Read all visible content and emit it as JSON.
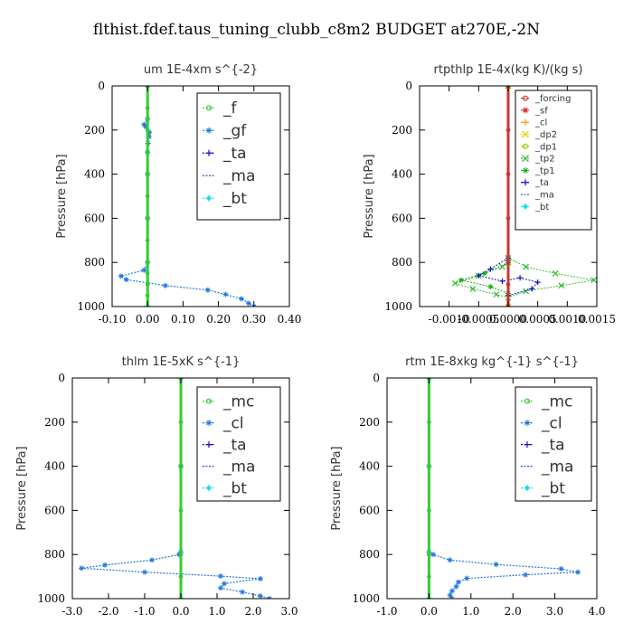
{
  "figure_title": "flthist.fdef.taus_tuning_clubb_c8m2  BUDGET at270E,-2N",
  "chart_data": [
    {
      "type": "line",
      "title": "um   1E-4xm  s^{-2}",
      "ylabel": "Pressure [hPa]",
      "xlim": [
        -0.1,
        0.4
      ],
      "ylim": [
        1000,
        0
      ],
      "xticks": [
        "-0.10",
        "0.00",
        "0.10",
        "0.20",
        "0.30",
        "0.40"
      ],
      "xtick_values": [
        -0.1,
        0.0,
        0.1,
        0.2,
        0.3,
        0.4
      ],
      "yticks": [
        "0",
        "200",
        "400",
        "600",
        "800",
        "1000"
      ],
      "ytick_values": [
        0,
        200,
        400,
        600,
        800,
        1000
      ],
      "legend_placement": "top-right",
      "legend_font": 17,
      "series": [
        {
          "name": "_f",
          "color": "#33cc33",
          "marker": "o",
          "width": 3,
          "points": [
            [
              0.0,
              0
            ],
            [
              0.0,
              100
            ],
            [
              0.0,
              200
            ],
            [
              0.0,
              300
            ],
            [
              0.0,
              400
            ],
            [
              0.0,
              500
            ],
            [
              0.0,
              600
            ],
            [
              0.0,
              700
            ],
            [
              0.0,
              800
            ],
            [
              0.0,
              850
            ],
            [
              0.0,
              900
            ],
            [
              0.0,
              950
            ],
            [
              0.0,
              1000
            ]
          ]
        },
        {
          "name": "_gf",
          "color": "#2277dd",
          "marker": "*",
          "width": 1.2,
          "points": [
            [
              0.0,
              0
            ],
            [
              0.0,
              150
            ],
            [
              -0.01,
              175
            ],
            [
              -0.005,
              185
            ],
            [
              0.005,
              210
            ],
            [
              0.004,
              230
            ],
            [
              0.001,
              260
            ],
            [
              0.0,
              300
            ],
            [
              0.0,
              400
            ],
            [
              0.0,
              600
            ],
            [
              0.0,
              800
            ],
            [
              -0.01,
              835
            ],
            [
              -0.075,
              862
            ],
            [
              -0.06,
              878
            ],
            [
              0.05,
              905
            ],
            [
              0.17,
              925
            ],
            [
              0.22,
              945
            ],
            [
              0.265,
              965
            ],
            [
              0.285,
              985
            ],
            [
              0.3,
              1000
            ]
          ]
        },
        {
          "name": "_ta",
          "color": "#1111cc",
          "marker": "+",
          "width": 1,
          "points": [
            [
              0.0,
              0
            ],
            [
              0.0,
              1000
            ]
          ]
        },
        {
          "name": "_ma",
          "color": "#1155cc",
          "marker": "-",
          "width": 1,
          "points": [
            [
              0.0,
              0
            ],
            [
              0.0,
              1000
            ]
          ]
        },
        {
          "name": "_bt",
          "color": "#11ddee",
          "marker": "d",
          "width": 1,
          "points": [
            [
              0.0,
              0
            ],
            [
              0.0,
              1000
            ]
          ]
        }
      ]
    },
    {
      "type": "line",
      "title": "rtpthlp   1E-4x(kg K)/(kg s)",
      "ylabel": "Pressure [hPa]",
      "xlim": [
        -0.0015,
        0.0015
      ],
      "ylim": [
        1000,
        0
      ],
      "xticks": [
        "-0.0010",
        "-0.0005",
        "0.0000",
        "0.0005",
        "0.0010",
        "0.0015"
      ],
      "xtick_values": [
        -0.001,
        -0.0005,
        0.0,
        0.0005,
        0.001,
        0.0015
      ],
      "yticks": [
        "0",
        "200",
        "400",
        "600",
        "800",
        "1000"
      ],
      "ytick_values": [
        0,
        200,
        400,
        600,
        800,
        1000
      ],
      "legend_placement": "top-right",
      "legend_font": 10,
      "series": [
        {
          "name": "_forcing",
          "color": "#cc3333",
          "marker": "o",
          "width": 3,
          "points": [
            [
              0.0,
              0
            ],
            [
              0.0,
              200
            ],
            [
              0.0,
              400
            ],
            [
              0.0,
              600
            ],
            [
              0.0,
              800
            ],
            [
              0.0,
              900
            ],
            [
              0.0,
              1000
            ]
          ]
        },
        {
          "name": "_sf",
          "color": "#cc2222",
          "marker": "*",
          "width": 1,
          "points": [
            [
              0.0,
              0
            ],
            [
              0.0,
              1000
            ]
          ]
        },
        {
          "name": "_cl",
          "color": "#ff9900",
          "marker": "+",
          "width": 1,
          "points": [
            [
              0.0,
              0
            ],
            [
              0.0,
              1000
            ]
          ]
        },
        {
          "name": "_dp2",
          "color": "#ddcc00",
          "marker": "x",
          "width": 1,
          "points": [
            [
              0.0,
              0
            ],
            [
              0.0,
              1000
            ]
          ]
        },
        {
          "name": "_dp1",
          "color": "#99cc00",
          "marker": "o",
          "width": 1,
          "points": [
            [
              0.0,
              0
            ],
            [
              0.0,
              1000
            ]
          ]
        },
        {
          "name": "_tp2",
          "color": "#33bb33",
          "marker": "x",
          "width": 1,
          "points": [
            [
              0.0,
              0
            ],
            [
              0.0,
              780
            ],
            [
              0.0003,
              820
            ],
            [
              0.0008,
              850
            ],
            [
              0.00145,
              880
            ],
            [
              0.0009,
              905
            ],
            [
              0.0003,
              930
            ],
            [
              0.0,
              960
            ],
            [
              -0.0002,
              945
            ],
            [
              -0.0006,
              920
            ],
            [
              -0.0009,
              895
            ],
            [
              -0.0005,
              860
            ],
            [
              -0.0001,
              820
            ],
            [
              0.0,
              800
            ]
          ]
        },
        {
          "name": "_tp1",
          "color": "#22aa22",
          "marker": "*",
          "width": 1,
          "points": [
            [
              0.0,
              800
            ],
            [
              -0.0004,
              850
            ],
            [
              -0.0008,
              880
            ],
            [
              -0.0003,
              910
            ],
            [
              0.0,
              940
            ]
          ]
        },
        {
          "name": "_ta",
          "color": "#1111cc",
          "marker": "+",
          "width": 1,
          "points": [
            [
              0.0,
              780
            ],
            [
              -0.0003,
              830
            ],
            [
              -0.0005,
              860
            ],
            [
              -0.0001,
              885
            ],
            [
              0.0002,
              870
            ],
            [
              0.0005,
              890
            ],
            [
              0.0004,
              920
            ],
            [
              0.0,
              950
            ]
          ]
        },
        {
          "name": "_ma",
          "color": "#1155cc",
          "marker": "-",
          "width": 1,
          "points": [
            [
              0.0,
              0
            ],
            [
              0.0,
              1000
            ]
          ]
        },
        {
          "name": "_bt",
          "color": "#11ddee",
          "marker": "d",
          "width": 1,
          "points": [
            [
              0.0,
              0
            ],
            [
              0.0,
              1000
            ]
          ]
        }
      ]
    },
    {
      "type": "line",
      "title": "thlm   1E-5xK  s^{-1}",
      "ylabel": "Pressure [hPa]",
      "xlim": [
        -3.0,
        3.0
      ],
      "ylim": [
        1000,
        0
      ],
      "xticks": [
        "-3.0",
        "-2.0",
        "-1.0",
        "0.0",
        "1.0",
        "2.0",
        "3.0"
      ],
      "xtick_values": [
        -3.0,
        -2.0,
        -1.0,
        0.0,
        1.0,
        2.0,
        3.0
      ],
      "yticks": [
        "0",
        "200",
        "400",
        "600",
        "800",
        "1000"
      ],
      "ytick_values": [
        0,
        200,
        400,
        600,
        800,
        1000
      ],
      "legend_placement": "top-right",
      "legend_font": 17,
      "series": [
        {
          "name": "_mc",
          "color": "#33cc33",
          "marker": "o",
          "width": 3,
          "points": [
            [
              0.0,
              0
            ],
            [
              0.0,
              200
            ],
            [
              0.0,
              400
            ],
            [
              0.0,
              600
            ],
            [
              0.0,
              800
            ],
            [
              0.0,
              900
            ],
            [
              0.0,
              1000
            ]
          ]
        },
        {
          "name": "_cl",
          "color": "#2277dd",
          "marker": "*",
          "width": 1.2,
          "points": [
            [
              0.0,
              0
            ],
            [
              0.0,
              400
            ],
            [
              0.0,
              790
            ],
            [
              -0.05,
              800
            ],
            [
              -0.8,
              825
            ],
            [
              -2.1,
              848
            ],
            [
              -2.75,
              862
            ],
            [
              -1.0,
              880
            ],
            [
              1.1,
              898
            ],
            [
              2.2,
              910
            ],
            [
              1.2,
              932
            ],
            [
              1.1,
              952
            ],
            [
              1.7,
              970
            ],
            [
              2.2,
              988
            ],
            [
              2.45,
              1000
            ]
          ]
        },
        {
          "name": "_ta",
          "color": "#1111cc",
          "marker": "+",
          "width": 1,
          "points": [
            [
              0.0,
              0
            ],
            [
              0.0,
              1000
            ]
          ]
        },
        {
          "name": "_ma",
          "color": "#1155cc",
          "marker": "-",
          "width": 1,
          "points": [
            [
              0.0,
              0
            ],
            [
              0.0,
              1000
            ]
          ]
        },
        {
          "name": "_bt",
          "color": "#11ddee",
          "marker": "d",
          "width": 1,
          "points": [
            [
              0.0,
              0
            ],
            [
              0.0,
              1000
            ]
          ]
        }
      ]
    },
    {
      "type": "line",
      "title": "rtm   1E-8xkg  kg^{-1} s^{-1}",
      "ylabel": "Pressure [hPa]",
      "xlim": [
        -1.0,
        4.0
      ],
      "ylim": [
        1000,
        0
      ],
      "xticks": [
        "-1.0",
        "0.0",
        "1.0",
        "2.0",
        "3.0",
        "4.0"
      ],
      "xtick_values": [
        -1.0,
        0.0,
        1.0,
        2.0,
        3.0,
        4.0
      ],
      "yticks": [
        "0",
        "200",
        "400",
        "600",
        "800",
        "1000"
      ],
      "ytick_values": [
        0,
        200,
        400,
        600,
        800,
        1000
      ],
      "legend_placement": "top-right",
      "legend_font": 17,
      "series": [
        {
          "name": "_mc",
          "color": "#33cc33",
          "marker": "o",
          "width": 3,
          "points": [
            [
              0.0,
              0
            ],
            [
              0.0,
              200
            ],
            [
              0.0,
              400
            ],
            [
              0.0,
              600
            ],
            [
              0.0,
              800
            ],
            [
              0.0,
              900
            ],
            [
              0.0,
              1000
            ]
          ]
        },
        {
          "name": "_cl",
          "color": "#2277dd",
          "marker": "*",
          "width": 1.2,
          "points": [
            [
              0.0,
              0
            ],
            [
              0.0,
              400
            ],
            [
              0.0,
              790
            ],
            [
              0.1,
              800
            ],
            [
              0.5,
              825
            ],
            [
              1.6,
              845
            ],
            [
              3.15,
              865
            ],
            [
              3.55,
              880
            ],
            [
              2.3,
              892
            ],
            [
              0.9,
              908
            ],
            [
              0.7,
              925
            ],
            [
              0.65,
              945
            ],
            [
              0.55,
              965
            ],
            [
              0.5,
              985
            ],
            [
              0.55,
              1000
            ]
          ]
        },
        {
          "name": "_ta",
          "color": "#1111cc",
          "marker": "+",
          "width": 1,
          "points": [
            [
              0.0,
              0
            ],
            [
              0.0,
              1000
            ]
          ]
        },
        {
          "name": "_ma",
          "color": "#1155cc",
          "marker": "-",
          "width": 1,
          "points": [
            [
              0.0,
              0
            ],
            [
              0.0,
              1000
            ]
          ]
        },
        {
          "name": "_bt",
          "color": "#11ddee",
          "marker": "d",
          "width": 1,
          "points": [
            [
              0.0,
              0
            ],
            [
              0.0,
              1000
            ]
          ]
        }
      ]
    }
  ]
}
